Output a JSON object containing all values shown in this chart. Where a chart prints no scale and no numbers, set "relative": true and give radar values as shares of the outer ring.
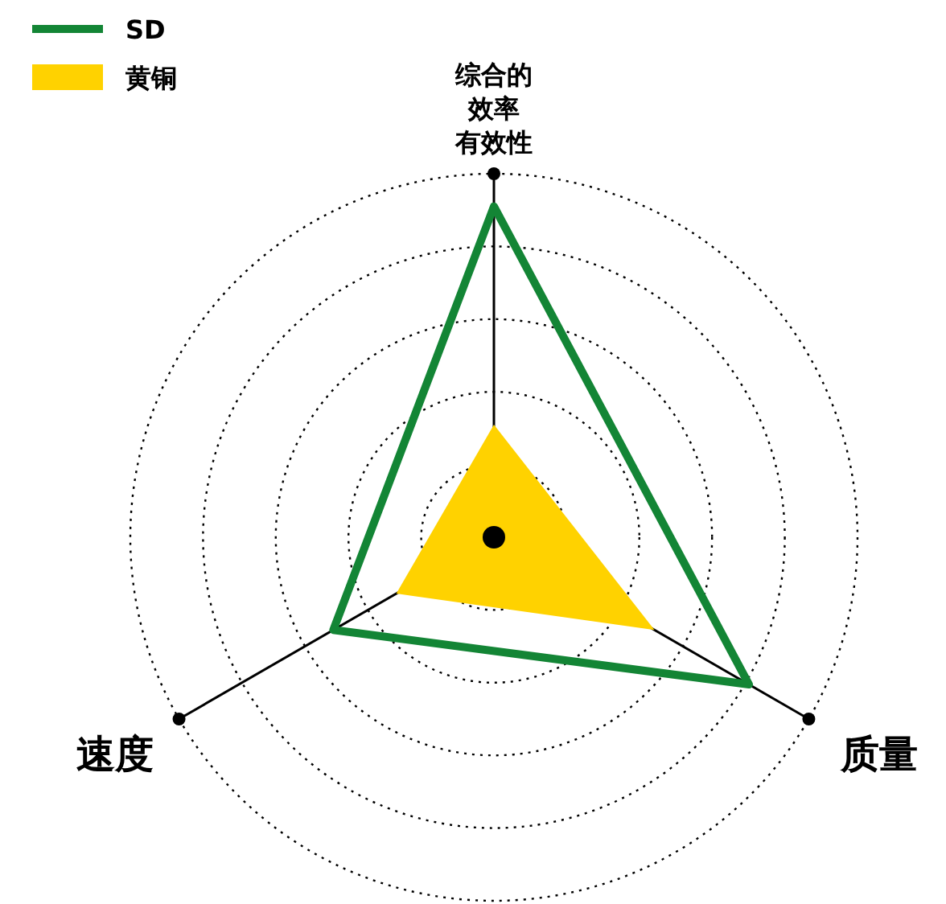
{
  "chart_data": {
    "type": "radar",
    "relative": true,
    "categories": [
      "综合的效率有效性",
      "质量",
      "速度"
    ],
    "series": [
      {
        "name": "SD",
        "color": "#138535",
        "values": [
          0.91,
          0.81,
          0.51
        ]
      },
      {
        "name": "黄铜",
        "type": "area",
        "color": "#ffd200",
        "values": [
          0.31,
          0.51,
          0.31
        ]
      }
    ],
    "grid": true,
    "legend": "top left"
  }
}
